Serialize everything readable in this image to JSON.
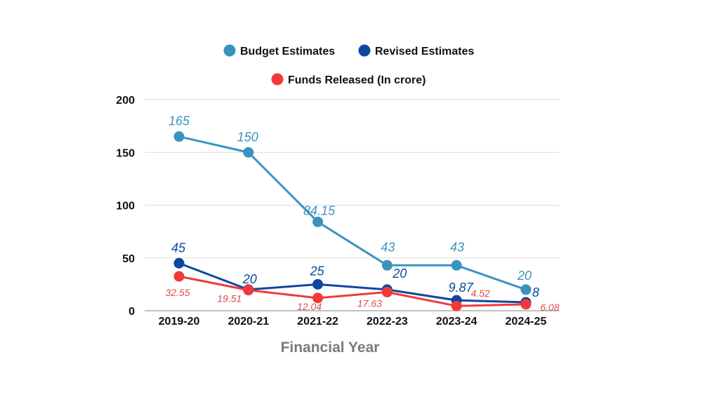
{
  "chart_data": {
    "type": "line",
    "categories": [
      "2019-20",
      "2020-21",
      "2021-22",
      "2022-23",
      "2023-24",
      "2024-25"
    ],
    "xlabel": "Financial Year",
    "ylabel": "",
    "ylim": [
      0,
      200
    ],
    "yticks": [
      0,
      50,
      100,
      150,
      200
    ],
    "grid": true,
    "legend_position": "top",
    "series": [
      {
        "name": "Budget Estimates",
        "color": "#3a93bf",
        "values": [
          165,
          150,
          84.15,
          43,
          43,
          20
        ],
        "labels": [
          "165",
          "150",
          "84.15",
          "43",
          "43",
          "20"
        ]
      },
      {
        "name": "Revised Estimates",
        "color": "#0e47a1",
        "values": [
          45,
          20,
          25,
          20,
          9.87,
          8
        ],
        "labels": [
          "45",
          "20",
          "25",
          "20",
          "9.87",
          "8"
        ]
      },
      {
        "name": "Funds Released (In crore)",
        "color": "#f03a3a",
        "label_color": "#d94c4c",
        "values": [
          32.55,
          19.51,
          12.04,
          17.63,
          4.52,
          6.08
        ],
        "labels": [
          "32.55",
          "19.51",
          "12.04",
          "17.63",
          "4.52",
          "6.08"
        ]
      }
    ]
  }
}
